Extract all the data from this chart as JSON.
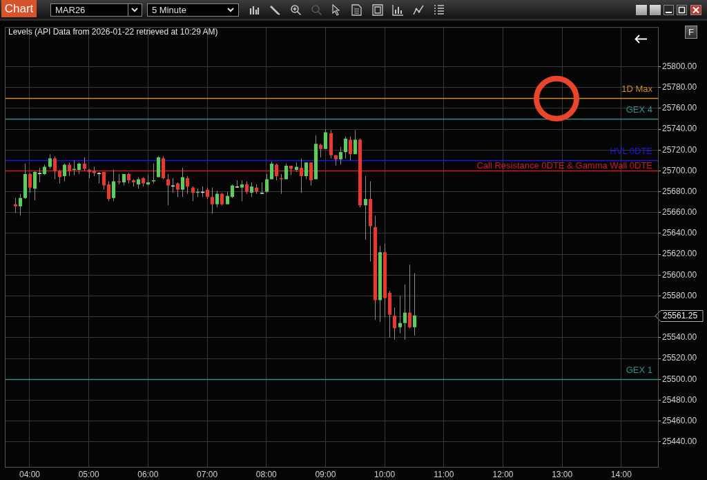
{
  "chart_data": {
    "type": "candlestick",
    "title": "Levels (API Data from 2026-01-22 retrieved at 10:29 AM)",
    "x": [
      3.75,
      3.8333,
      3.9167,
      4,
      4.0833,
      4.1667,
      4.25,
      4.3333,
      4.4167,
      4.5,
      4.5833,
      4.6667,
      4.75,
      4.8333,
      4.9167,
      5,
      5.0833,
      5.1667,
      5.25,
      5.3333,
      5.4167,
      5.5,
      5.5833,
      5.6667,
      5.75,
      5.8333,
      5.9167,
      6,
      6.0833,
      6.1667,
      6.25,
      6.3333,
      6.4167,
      6.5,
      6.5833,
      6.6667,
      6.75,
      6.8333,
      6.9167,
      7,
      7.0833,
      7.1667,
      7.25,
      7.3333,
      7.4167,
      7.5,
      7.5833,
      7.6667,
      7.75,
      7.8333,
      7.9167,
      8,
      8.0833,
      8.1667,
      8.25,
      8.3333,
      8.4167,
      8.5,
      8.5833,
      8.6667,
      8.75,
      8.8333,
      8.9167,
      9,
      9.0833,
      9.1667,
      9.25,
      9.3333,
      9.4167,
      9.5,
      9.5833,
      9.6667,
      9.75,
      9.8333,
      9.9167,
      10,
      10.0833,
      10.1667,
      10.25,
      10.3333,
      10.4167,
      10.5
    ],
    "ohlc": [
      [
        25668,
        25674,
        25660,
        25666
      ],
      [
        25666,
        25678,
        25657,
        25674
      ],
      [
        25674,
        25707,
        25673,
        25697
      ],
      [
        25697,
        25698,
        25679,
        25684
      ],
      [
        25683,
        25700,
        25672,
        25699
      ],
      [
        25698,
        25703,
        25689,
        25698
      ],
      [
        25697,
        25706,
        25696,
        25704
      ],
      [
        25704,
        25716,
        25702,
        25712
      ],
      [
        25712,
        25714,
        25692,
        25700
      ],
      [
        25700,
        25701,
        25688,
        25694
      ],
      [
        25695,
        25707,
        25690,
        25706
      ],
      [
        25706,
        25708,
        25695,
        25700
      ],
      [
        25701,
        25710,
        25696,
        25702
      ],
      [
        25701,
        25708,
        25697,
        25707
      ],
      [
        25707,
        25713,
        25700,
        25702
      ],
      [
        25701,
        25702,
        25693,
        25699
      ],
      [
        25700,
        25704,
        25695,
        25698
      ],
      [
        25698,
        25699,
        25688,
        25698
      ],
      [
        25699,
        25699,
        25682,
        25686
      ],
      [
        25687,
        25690,
        25671,
        25673
      ],
      [
        25674,
        25701,
        25671,
        25690
      ],
      [
        25690,
        25697,
        25687,
        25689
      ],
      [
        25689,
        25697,
        25686,
        25697
      ],
      [
        25697,
        25698,
        25688,
        25691
      ],
      [
        25691,
        25692,
        25685,
        25689
      ],
      [
        25687,
        25694,
        25683,
        25692
      ],
      [
        25693,
        25694,
        25685,
        25688
      ],
      [
        25687,
        25696,
        25686,
        25689
      ],
      [
        25690,
        25707,
        25688,
        25691
      ],
      [
        25694,
        25714,
        25694,
        25713
      ],
      [
        25712,
        25714,
        25692,
        25693
      ],
      [
        25692,
        25697,
        25667,
        25686
      ],
      [
        25686,
        25693,
        25679,
        25686
      ],
      [
        25688,
        25689,
        25675,
        25682
      ],
      [
        25682,
        25703,
        25675,
        25694
      ],
      [
        25693,
        25695,
        25678,
        25685
      ],
      [
        25684,
        25685,
        25671,
        25679
      ],
      [
        25679,
        25683,
        25675,
        25680
      ],
      [
        25680,
        25685,
        25675,
        25680
      ],
      [
        25682,
        25684,
        25673,
        25675
      ],
      [
        25675,
        25684,
        25659,
        25668
      ],
      [
        25668,
        25681,
        25665,
        25678
      ],
      [
        25678,
        25679,
        25667,
        25668
      ],
      [
        25668,
        25680,
        25668,
        25676
      ],
      [
        25675,
        25687,
        25674,
        25686
      ],
      [
        25685,
        25691,
        25684,
        25685
      ],
      [
        25684,
        25691,
        25671,
        25687
      ],
      [
        25687,
        25690,
        25678,
        25680
      ],
      [
        25679,
        25689,
        25675,
        25685
      ],
      [
        25684,
        25687,
        25678,
        25680
      ],
      [
        25679,
        25689,
        25678,
        25679
      ],
      [
        25680,
        25697,
        25679,
        25692
      ],
      [
        25692,
        25709,
        25692,
        25707
      ],
      [
        25706,
        25707,
        25691,
        25695
      ],
      [
        25693,
        25697,
        25678,
        25692
      ],
      [
        25692,
        25707,
        25692,
        25705
      ],
      [
        25705,
        25705,
        25696,
        25702
      ],
      [
        25701,
        25708,
        25699,
        25704
      ],
      [
        25703,
        25712,
        25679,
        25695
      ],
      [
        25695,
        25708,
        25692,
        25708
      ],
      [
        25708,
        25708,
        25686,
        25691
      ],
      [
        25692,
        25734,
        25692,
        25726
      ],
      [
        25725,
        25726,
        25713,
        25721
      ],
      [
        25721,
        25740,
        25721,
        25737
      ],
      [
        25736,
        25739,
        25712,
        25715
      ],
      [
        25715,
        25715,
        25705,
        25711
      ],
      [
        25711,
        25723,
        25706,
        25718
      ],
      [
        25718,
        25733,
        25712,
        25731
      ],
      [
        25730,
        25733,
        25710,
        25716
      ],
      [
        25716,
        25739,
        25716,
        25730
      ],
      [
        25730,
        25731,
        25665,
        25667
      ],
      [
        25667,
        25695,
        25634,
        25673
      ],
      [
        25673,
        25690,
        25613,
        25647
      ],
      [
        25646,
        25657,
        25557,
        25576
      ],
      [
        25576,
        25628,
        25555,
        25622
      ],
      [
        25622,
        25630,
        25560,
        25578
      ],
      [
        25583,
        25585,
        25540,
        25562
      ],
      [
        25561,
        25569,
        25538,
        25549
      ],
      [
        25550,
        25580,
        25544,
        25554
      ],
      [
        25554,
        25591,
        25538,
        25564
      ],
      [
        25564,
        25610,
        25549,
        25550
      ],
      [
        25550,
        25602,
        25542,
        25561.25
      ]
    ],
    "colors": [
      "#e8392f",
      "#5ecb5e",
      "#5ecb5e",
      "#e8392f",
      "#5ecb5e",
      "#e0e0e0",
      "#5ecb5e",
      "#5ecb5e",
      "#e8392f",
      "#e8392f",
      "#5ecb5e",
      "#e8392f",
      "#5ecb5e",
      "#5ecb5e",
      "#e8392f",
      "#e8392f",
      "#e8392f",
      "#e0e0e0",
      "#e8392f",
      "#e8392f",
      "#5ecb5e",
      "#e8392f",
      "#5ecb5e",
      "#e8392f",
      "#e8392f",
      "#5ecb5e",
      "#e8392f",
      "#5ecb5e",
      "#5ecb5e",
      "#5ecb5e",
      "#e8392f",
      "#e8392f",
      "#e0e0e0",
      "#e8392f",
      "#5ecb5e",
      "#e8392f",
      "#e8392f",
      "#5ecb5e",
      "#e0e0e0",
      "#e8392f",
      "#e8392f",
      "#5ecb5e",
      "#e8392f",
      "#5ecb5e",
      "#5ecb5e",
      "#e0e0e0",
      "#5ecb5e",
      "#e8392f",
      "#5ecb5e",
      "#e8392f",
      "#e0e0e0",
      "#5ecb5e",
      "#5ecb5e",
      "#e8392f",
      "#e8392f",
      "#5ecb5e",
      "#e8392f",
      "#5ecb5e",
      "#e8392f",
      "#5ecb5e",
      "#e8392f",
      "#5ecb5e",
      "#e8392f",
      "#5ecb5e",
      "#e8392f",
      "#e8392f",
      "#5ecb5e",
      "#5ecb5e",
      "#e8392f",
      "#5ecb5e",
      "#e8392f",
      "#5ecb5e",
      "#e8392f",
      "#e8392f",
      "#5ecb5e",
      "#e8392f",
      "#e8392f",
      "#e8392f",
      "#5ecb5e",
      "#5ecb5e",
      "#e8392f",
      "#5ecb5e"
    ],
    "xlim": [
      3.58,
      14.62
    ],
    "ylim": [
      25416,
      25838
    ],
    "xticks": [
      {
        "value": 4,
        "label": "04:00"
      },
      {
        "value": 5,
        "label": "05:00"
      },
      {
        "value": 6,
        "label": "06:00"
      },
      {
        "value": 7,
        "label": "07:00"
      },
      {
        "value": 8,
        "label": "08:00"
      },
      {
        "value": 9,
        "label": "09:00"
      },
      {
        "value": 10,
        "label": "10:00"
      },
      {
        "value": 11,
        "label": "11:00"
      },
      {
        "value": 12,
        "label": "12:00"
      },
      {
        "value": 13,
        "label": "13:00"
      },
      {
        "value": 14,
        "label": "14:00"
      }
    ],
    "yticks": [
      {
        "value": 25440,
        "label": "25440.00"
      },
      {
        "value": 25460,
        "label": "25460.00"
      },
      {
        "value": 25480,
        "label": "25480.00"
      },
      {
        "value": 25500,
        "label": "25500.00"
      },
      {
        "value": 25520,
        "label": "25520.00"
      },
      {
        "value": 25540,
        "label": "25540.00"
      },
      {
        "value": 25560,
        "label": null
      },
      {
        "value": 25580,
        "label": "25580.00"
      },
      {
        "value": 25600,
        "label": "25600.00"
      },
      {
        "value": 25620,
        "label": "25620.00"
      },
      {
        "value": 25640,
        "label": "25640.00"
      },
      {
        "value": 25660,
        "label": "25660.00"
      },
      {
        "value": 25680,
        "label": "25680.00"
      },
      {
        "value": 25700,
        "label": "25700.00"
      },
      {
        "value": 25720,
        "label": "25720.00"
      },
      {
        "value": 25740,
        "label": "25740.00"
      },
      {
        "value": 25760,
        "label": "25760.00"
      },
      {
        "value": 25780,
        "label": "25780.00"
      },
      {
        "value": 25800,
        "label": "25800.00"
      }
    ],
    "grid": true,
    "ref_lines": [
      {
        "axis": "y",
        "value": 25770,
        "label": "1D Max",
        "color": "#cc8a2c"
      },
      {
        "axis": "y",
        "value": 25750,
        "label": "GEX 4",
        "color": "#2f8f8f"
      },
      {
        "axis": "y",
        "value": 25710,
        "label": "HVL 0DTE",
        "color": "#1a1ad8"
      },
      {
        "axis": "y",
        "value": 25700,
        "label": "Call Resistance 0DTE & Gamma Wall 0DTE",
        "color": "#c81e1e"
      },
      {
        "axis": "y",
        "value": 25500,
        "label": "GEX 1",
        "color": "#2f8f8f"
      }
    ],
    "annotations": [
      "Chart",
      "MAR26",
      "5 Minute",
      "F",
      "25561.25"
    ]
  }
}
